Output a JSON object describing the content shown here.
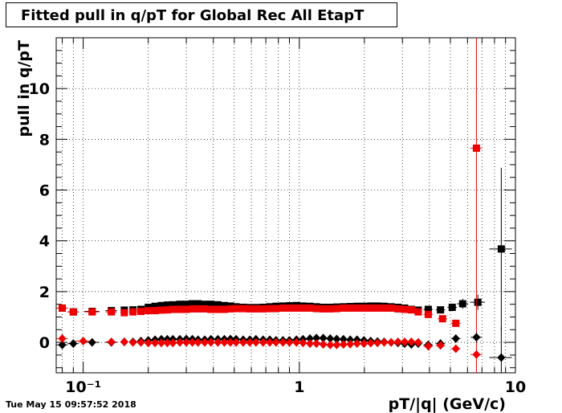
{
  "title": "Fitted pull in q/pT for Global Rec All EtapT",
  "timestamp": "Tue May 15 09:57:52 2018",
  "chart_data": {
    "type": "scatter",
    "title": "Fitted pull in q/pT for Global Rec All EtapT",
    "xlabel": "pT/|q| (GeV/c)",
    "ylabel": "pull in q/pT",
    "xscale": "log",
    "xlim": [
      0.075,
      10
    ],
    "ylim": [
      -1.2,
      12
    ],
    "grid": true,
    "x_tick_labels": [
      "10⁻¹",
      "1",
      "10"
    ],
    "y_tick_labels": [
      "0",
      "2",
      "4",
      "6",
      "8",
      "10"
    ],
    "x_ticks": [
      0.1,
      1,
      10
    ],
    "y_ticks": [
      0,
      2,
      4,
      6,
      8,
      10
    ],
    "series": [
      {
        "marker": "square",
        "color": "#000000",
        "x": [
          0.08,
          0.09,
          0.11,
          0.135,
          0.155,
          0.17,
          0.185,
          0.2,
          0.215,
          0.23,
          0.245,
          0.26,
          0.28,
          0.3,
          0.32,
          0.34,
          0.365,
          0.39,
          0.42,
          0.45,
          0.48,
          0.51,
          0.55,
          0.59,
          0.63,
          0.68,
          0.73,
          0.78,
          0.84,
          0.9,
          0.97,
          1.04,
          1.12,
          1.2,
          1.29,
          1.39,
          1.49,
          1.6,
          1.72,
          1.85,
          1.99,
          2.14,
          2.3,
          2.47,
          2.66,
          2.86,
          3.07,
          3.3,
          3.55,
          3.95,
          4.5,
          5.1,
          5.7,
          6.7,
          8.6
        ],
        "y": [
          1.35,
          1.2,
          1.22,
          1.25,
          1.27,
          1.28,
          1.3,
          1.38,
          1.42,
          1.45,
          1.47,
          1.48,
          1.5,
          1.5,
          1.52,
          1.52,
          1.5,
          1.5,
          1.48,
          1.45,
          1.43,
          1.4,
          1.38,
          1.37,
          1.37,
          1.38,
          1.4,
          1.42,
          1.43,
          1.44,
          1.45,
          1.43,
          1.42,
          1.4,
          1.38,
          1.38,
          1.39,
          1.4,
          1.41,
          1.42,
          1.42,
          1.43,
          1.43,
          1.42,
          1.4,
          1.38,
          1.35,
          1.3,
          1.27,
          1.3,
          1.28,
          1.38,
          1.52,
          1.58,
          3.68
        ],
        "yerr": [
          0.05,
          0.05,
          0.05,
          0.05,
          0.05,
          0.05,
          0.05,
          0.05,
          0.05,
          0.05,
          0.05,
          0.05,
          0.05,
          0.05,
          0.05,
          0.05,
          0.05,
          0.05,
          0.05,
          0.05,
          0.05,
          0.05,
          0.05,
          0.05,
          0.05,
          0.05,
          0.05,
          0.05,
          0.05,
          0.05,
          0.05,
          0.05,
          0.05,
          0.05,
          0.05,
          0.05,
          0.05,
          0.05,
          0.05,
          0.05,
          0.05,
          0.05,
          0.05,
          0.05,
          0.05,
          0.05,
          0.05,
          0.05,
          0.05,
          0.08,
          0.1,
          0.15,
          0.2,
          0.3,
          3.2
        ],
        "xerr_frac": [
          0.06,
          0.06,
          0.08,
          0.06,
          0.04,
          0.04,
          0.04,
          0.04,
          0.04,
          0.04,
          0.04,
          0.04,
          0.04,
          0.04,
          0.04,
          0.04,
          0.04,
          0.04,
          0.04,
          0.04,
          0.04,
          0.04,
          0.04,
          0.04,
          0.04,
          0.04,
          0.04,
          0.04,
          0.04,
          0.04,
          0.04,
          0.04,
          0.04,
          0.04,
          0.04,
          0.04,
          0.04,
          0.04,
          0.04,
          0.04,
          0.04,
          0.04,
          0.04,
          0.04,
          0.04,
          0.04,
          0.04,
          0.04,
          0.04,
          0.05,
          0.05,
          0.05,
          0.06,
          0.08,
          0.12
        ]
      },
      {
        "marker": "square",
        "color": "#ee0000",
        "x": [
          0.08,
          0.09,
          0.11,
          0.135,
          0.155,
          0.17,
          0.185,
          0.2,
          0.215,
          0.23,
          0.245,
          0.26,
          0.28,
          0.3,
          0.32,
          0.34,
          0.365,
          0.39,
          0.42,
          0.45,
          0.48,
          0.51,
          0.55,
          0.59,
          0.63,
          0.68,
          0.73,
          0.78,
          0.84,
          0.9,
          0.97,
          1.04,
          1.12,
          1.2,
          1.29,
          1.39,
          1.49,
          1.6,
          1.72,
          1.85,
          1.99,
          2.14,
          2.3,
          2.47,
          2.66,
          2.86,
          3.07,
          3.3,
          3.55,
          3.95,
          4.6,
          5.3,
          6.6
        ],
        "y": [
          1.35,
          1.2,
          1.2,
          1.2,
          1.17,
          1.2,
          1.22,
          1.25,
          1.25,
          1.27,
          1.28,
          1.3,
          1.3,
          1.3,
          1.32,
          1.32,
          1.32,
          1.3,
          1.3,
          1.3,
          1.32,
          1.33,
          1.33,
          1.32,
          1.32,
          1.32,
          1.33,
          1.33,
          1.35,
          1.35,
          1.35,
          1.35,
          1.35,
          1.33,
          1.32,
          1.32,
          1.33,
          1.35,
          1.35,
          1.35,
          1.35,
          1.35,
          1.35,
          1.35,
          1.35,
          1.32,
          1.3,
          1.28,
          1.2,
          1.1,
          0.93,
          0.75,
          7.65
        ],
        "yerr": [
          0.05,
          0.05,
          0.05,
          0.05,
          0.05,
          0.05,
          0.05,
          0.05,
          0.05,
          0.05,
          0.05,
          0.05,
          0.05,
          0.05,
          0.05,
          0.05,
          0.05,
          0.05,
          0.05,
          0.05,
          0.05,
          0.05,
          0.05,
          0.05,
          0.05,
          0.05,
          0.05,
          0.05,
          0.05,
          0.05,
          0.05,
          0.05,
          0.05,
          0.05,
          0.05,
          0.05,
          0.05,
          0.05,
          0.05,
          0.05,
          0.05,
          0.05,
          0.05,
          0.05,
          0.05,
          0.05,
          0.05,
          0.05,
          0.05,
          0.06,
          0.08,
          0.1,
          10
        ],
        "xerr_frac": [
          0.06,
          0.06,
          0.08,
          0.06,
          0.04,
          0.04,
          0.04,
          0.04,
          0.04,
          0.04,
          0.04,
          0.04,
          0.04,
          0.04,
          0.04,
          0.04,
          0.04,
          0.04,
          0.04,
          0.04,
          0.04,
          0.04,
          0.04,
          0.04,
          0.04,
          0.04,
          0.04,
          0.04,
          0.04,
          0.04,
          0.04,
          0.04,
          0.04,
          0.04,
          0.04,
          0.04,
          0.04,
          0.04,
          0.04,
          0.04,
          0.04,
          0.04,
          0.04,
          0.04,
          0.04,
          0.04,
          0.04,
          0.04,
          0.04,
          0.05,
          0.05,
          0.05,
          0.06
        ]
      },
      {
        "marker": "diamond",
        "color": "#000000",
        "x": [
          0.08,
          0.09,
          0.11,
          0.135,
          0.155,
          0.17,
          0.185,
          0.2,
          0.215,
          0.23,
          0.245,
          0.26,
          0.28,
          0.3,
          0.32,
          0.34,
          0.365,
          0.39,
          0.42,
          0.45,
          0.48,
          0.51,
          0.55,
          0.59,
          0.63,
          0.68,
          0.73,
          0.78,
          0.84,
          0.9,
          0.97,
          1.04,
          1.12,
          1.2,
          1.29,
          1.39,
          1.49,
          1.6,
          1.72,
          1.85,
          1.99,
          2.14,
          2.3,
          2.47,
          2.66,
          2.86,
          3.07,
          3.3,
          3.55,
          3.95,
          4.5,
          5.3,
          6.6,
          8.6
        ],
        "y": [
          -0.1,
          -0.05,
          0.0,
          0.0,
          0.02,
          0.02,
          0.05,
          0.08,
          0.1,
          0.12,
          0.12,
          0.12,
          0.12,
          0.13,
          0.12,
          0.1,
          0.1,
          0.12,
          0.12,
          0.12,
          0.13,
          0.12,
          0.1,
          0.1,
          0.12,
          0.1,
          0.1,
          0.08,
          0.08,
          0.08,
          0.1,
          0.12,
          0.15,
          0.17,
          0.17,
          0.15,
          0.13,
          0.12,
          0.1,
          0.1,
          0.08,
          0.05,
          0.03,
          0.02,
          0.0,
          -0.02,
          -0.05,
          -0.08,
          -0.05,
          -0.1,
          -0.05,
          0.15,
          0.2,
          -0.6
        ],
        "yerr": [
          0.04,
          0.04,
          0.04,
          0.04,
          0.04,
          0.04,
          0.04,
          0.04,
          0.04,
          0.04,
          0.04,
          0.04,
          0.04,
          0.04,
          0.04,
          0.04,
          0.04,
          0.04,
          0.04,
          0.04,
          0.04,
          0.04,
          0.04,
          0.04,
          0.04,
          0.04,
          0.04,
          0.04,
          0.04,
          0.04,
          0.04,
          0.04,
          0.04,
          0.04,
          0.04,
          0.04,
          0.04,
          0.04,
          0.04,
          0.04,
          0.04,
          0.04,
          0.04,
          0.04,
          0.04,
          0.04,
          0.04,
          0.04,
          0.04,
          0.05,
          0.07,
          0.1,
          0.2,
          1.2
        ],
        "xerr_frac": [
          0.06,
          0.06,
          0.08,
          0.06,
          0.04,
          0.04,
          0.04,
          0.04,
          0.04,
          0.04,
          0.04,
          0.04,
          0.04,
          0.04,
          0.04,
          0.04,
          0.04,
          0.04,
          0.04,
          0.04,
          0.04,
          0.04,
          0.04,
          0.04,
          0.04,
          0.04,
          0.04,
          0.04,
          0.04,
          0.04,
          0.04,
          0.04,
          0.04,
          0.04,
          0.04,
          0.04,
          0.04,
          0.04,
          0.04,
          0.04,
          0.04,
          0.04,
          0.04,
          0.04,
          0.04,
          0.04,
          0.04,
          0.04,
          0.04,
          0.05,
          0.05,
          0.05,
          0.06,
          0.12
        ]
      },
      {
        "marker": "diamond",
        "color": "#ee0000",
        "x": [
          0.08,
          0.1,
          0.135,
          0.155,
          0.17,
          0.185,
          0.2,
          0.215,
          0.23,
          0.245,
          0.26,
          0.28,
          0.3,
          0.32,
          0.34,
          0.365,
          0.39,
          0.42,
          0.45,
          0.48,
          0.51,
          0.55,
          0.59,
          0.63,
          0.68,
          0.73,
          0.78,
          0.84,
          0.9,
          0.97,
          1.04,
          1.12,
          1.2,
          1.29,
          1.39,
          1.49,
          1.6,
          1.72,
          1.85,
          1.99,
          2.14,
          2.3,
          2.47,
          2.66,
          2.86,
          3.07,
          3.3,
          3.55,
          3.95,
          4.5,
          5.3,
          6.6
        ],
        "y": [
          0.15,
          0.05,
          0.02,
          0.02,
          0.0,
          0.0,
          -0.02,
          -0.02,
          -0.02,
          -0.02,
          -0.02,
          0.0,
          0.0,
          0.0,
          0.0,
          0.0,
          0.0,
          0.0,
          0.0,
          0.0,
          0.0,
          0.0,
          0.0,
          0.0,
          0.0,
          0.0,
          0.0,
          0.0,
          0.0,
          0.0,
          -0.02,
          -0.05,
          -0.05,
          -0.08,
          -0.1,
          -0.1,
          -0.08,
          -0.07,
          -0.05,
          -0.05,
          -0.03,
          -0.02,
          0.0,
          0.0,
          0.02,
          0.02,
          0.02,
          0.0,
          -0.15,
          -0.12,
          -0.25,
          -0.48
        ],
        "yerr": [
          0.04,
          0.04,
          0.04,
          0.04,
          0.04,
          0.04,
          0.04,
          0.04,
          0.04,
          0.04,
          0.04,
          0.04,
          0.04,
          0.04,
          0.04,
          0.04,
          0.04,
          0.04,
          0.04,
          0.04,
          0.04,
          0.04,
          0.04,
          0.04,
          0.04,
          0.04,
          0.04,
          0.04,
          0.04,
          0.04,
          0.04,
          0.04,
          0.04,
          0.04,
          0.04,
          0.04,
          0.04,
          0.04,
          0.04,
          0.04,
          0.04,
          0.04,
          0.04,
          0.04,
          0.04,
          0.04,
          0.04,
          0.04,
          0.05,
          0.07,
          0.1,
          0.15
        ],
        "xerr_frac": [
          0.06,
          0.08,
          0.06,
          0.04,
          0.04,
          0.04,
          0.04,
          0.04,
          0.04,
          0.04,
          0.04,
          0.04,
          0.04,
          0.04,
          0.04,
          0.04,
          0.04,
          0.04,
          0.04,
          0.04,
          0.04,
          0.04,
          0.04,
          0.04,
          0.04,
          0.04,
          0.04,
          0.04,
          0.04,
          0.04,
          0.04,
          0.04,
          0.04,
          0.04,
          0.04,
          0.04,
          0.04,
          0.04,
          0.04,
          0.04,
          0.04,
          0.04,
          0.04,
          0.04,
          0.04,
          0.04,
          0.04,
          0.04,
          0.05,
          0.05,
          0.05,
          0.06
        ]
      }
    ]
  }
}
